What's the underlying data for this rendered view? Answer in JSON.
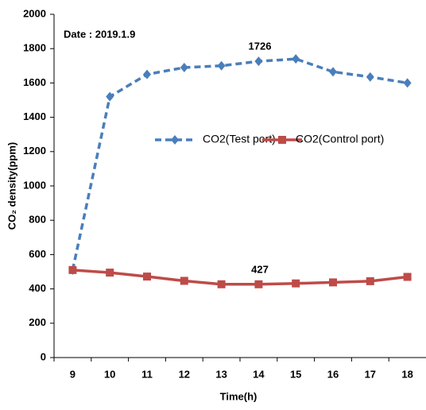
{
  "chart_data": {
    "type": "line",
    "title_annotation": "Date : 2019.1.9",
    "annotations": [
      "1726",
      "427"
    ],
    "xlabel": "Time(h)",
    "ylabel": "CO₂ density(ppm)",
    "categories": [
      "9",
      "10",
      "11",
      "12",
      "13",
      "14",
      "15",
      "16",
      "17",
      "18"
    ],
    "series": [
      {
        "name": "CO2(Test port)",
        "color": "#4a7ebb",
        "dashed": true,
        "marker": "diamond",
        "values": [
          510,
          1520,
          1650,
          1690,
          1700,
          1726,
          1740,
          1665,
          1635,
          1600
        ]
      },
      {
        "name": "CO2(Control port)",
        "color": "#be4b48",
        "dashed": false,
        "marker": "square",
        "values": [
          510,
          495,
          472,
          447,
          427,
          427,
          432,
          438,
          445,
          470
        ]
      }
    ],
    "ylim": [
      0,
      2000
    ],
    "yticks": [
      0,
      200,
      400,
      600,
      800,
      1000,
      1200,
      1400,
      1600,
      1800,
      2000
    ],
    "grid": false
  }
}
